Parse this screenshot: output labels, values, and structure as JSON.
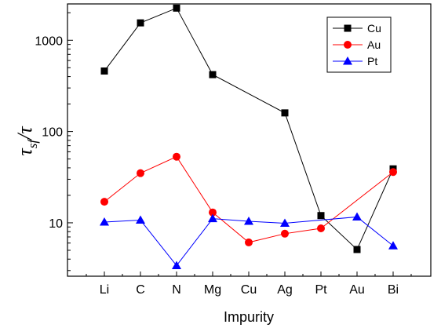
{
  "chart_data": {
    "type": "line",
    "xlabel": "Impurity",
    "ylabel": {
      "main": "τ",
      "sub": "sf",
      "slash": "/",
      "den": "τ"
    },
    "yscale": "log",
    "ylim": [
      2.6,
      2500
    ],
    "yticks": [
      10,
      100,
      1000
    ],
    "yticklabels": [
      "10",
      "100",
      "1000"
    ],
    "categories": [
      "Li",
      "C",
      "N",
      "Mg",
      "Cu",
      "Ag",
      "Pt",
      "Au",
      "Bi"
    ],
    "series": [
      {
        "name": "Cu",
        "color": "#000000",
        "marker": "square",
        "values": [
          460,
          1550,
          2250,
          420,
          null,
          160,
          12,
          5.1,
          39
        ]
      },
      {
        "name": "Au",
        "color": "#ff0000",
        "marker": "circle",
        "values": [
          17,
          35,
          53,
          13,
          6.1,
          7.6,
          8.7,
          null,
          36
        ]
      },
      {
        "name": "Pt",
        "color": "#0000ff",
        "marker": "triangle",
        "values": [
          10.2,
          10.7,
          3.4,
          11.1,
          10.4,
          9.9,
          null,
          11.6,
          5.6
        ]
      }
    ],
    "legend": {
      "position": "top-right"
    },
    "grid": false
  }
}
